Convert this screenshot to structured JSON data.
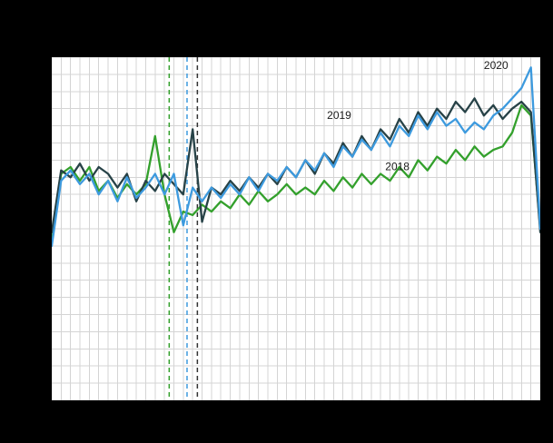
{
  "figure": {
    "background_color": "#000000",
    "plot_background_color": "#ffffff",
    "grid_color": "#d4d4d4",
    "annotation_text_color": "#1a1a1a"
  },
  "chart_data": {
    "type": "line",
    "xlabel": "",
    "ylabel": "",
    "x_range": [
      1,
      53
    ],
    "ylim": [
      0,
      100
    ],
    "grid": true,
    "x_grid_step": 1,
    "y_grid_step": 5,
    "x": [
      1,
      2,
      3,
      4,
      5,
      6,
      7,
      8,
      9,
      10,
      11,
      12,
      13,
      14,
      15,
      16,
      17,
      18,
      19,
      20,
      21,
      22,
      23,
      24,
      25,
      26,
      27,
      28,
      29,
      30,
      31,
      32,
      33,
      34,
      35,
      36,
      37,
      38,
      39,
      40,
      41,
      42,
      43,
      44,
      45,
      46,
      47,
      48,
      49,
      50,
      51,
      52,
      53
    ],
    "series": [
      {
        "name": "2018",
        "color": "#33a02c",
        "values": [
          46,
          66,
          68,
          64,
          68,
          61,
          64,
          59,
          63,
          60,
          63,
          77,
          60,
          49,
          55,
          54,
          57,
          55,
          58,
          56,
          60,
          57,
          61,
          58,
          60,
          63,
          60,
          62,
          60,
          64,
          61,
          65,
          62,
          66,
          63,
          66,
          64,
          68,
          65,
          70,
          67,
          71,
          69,
          73,
          70,
          74,
          71,
          73,
          74,
          78,
          86,
          83,
          50
        ]
      },
      {
        "name": "2019",
        "color": "#274247",
        "values": [
          49,
          67,
          65,
          69,
          64,
          68,
          66,
          62,
          66,
          58,
          64,
          61,
          66,
          63,
          60,
          79,
          52,
          62,
          60,
          64,
          61,
          65,
          62,
          66,
          63,
          68,
          65,
          70,
          66,
          72,
          69,
          75,
          71,
          77,
          73,
          79,
          76,
          82,
          78,
          84,
          80,
          85,
          82,
          87,
          84,
          88,
          83,
          86,
          82,
          85,
          87,
          84,
          49
        ]
      },
      {
        "name": "2020",
        "color": "#3d9ade",
        "values": [
          45,
          64,
          67,
          63,
          66,
          60,
          64,
          58,
          65,
          59,
          62,
          66,
          60,
          66,
          51,
          62,
          58,
          62,
          59,
          63,
          60,
          65,
          61,
          66,
          64,
          68,
          65,
          70,
          67,
          72,
          68,
          74,
          71,
          76,
          73,
          78,
          74,
          80,
          77,
          83,
          79,
          84,
          80,
          82,
          78,
          81,
          79,
          83,
          85,
          88,
          91,
          97,
          50
        ]
      }
    ],
    "event_lines": [
      {
        "week": 13.5,
        "color": "#33a02c",
        "style": "dashed"
      },
      {
        "week": 15.4,
        "color": "#3d9ade",
        "style": "dashed"
      },
      {
        "week": 16.5,
        "color": "#333333",
        "style": "dashed"
      }
    ],
    "annotations": [
      {
        "label": "2019",
        "week": 30.3,
        "value": 82
      },
      {
        "label": "2018",
        "week": 36.5,
        "value": 67
      },
      {
        "label": "2020",
        "week": 47.0,
        "value": 96.5
      }
    ],
    "legend_position": "inline-annotations"
  }
}
